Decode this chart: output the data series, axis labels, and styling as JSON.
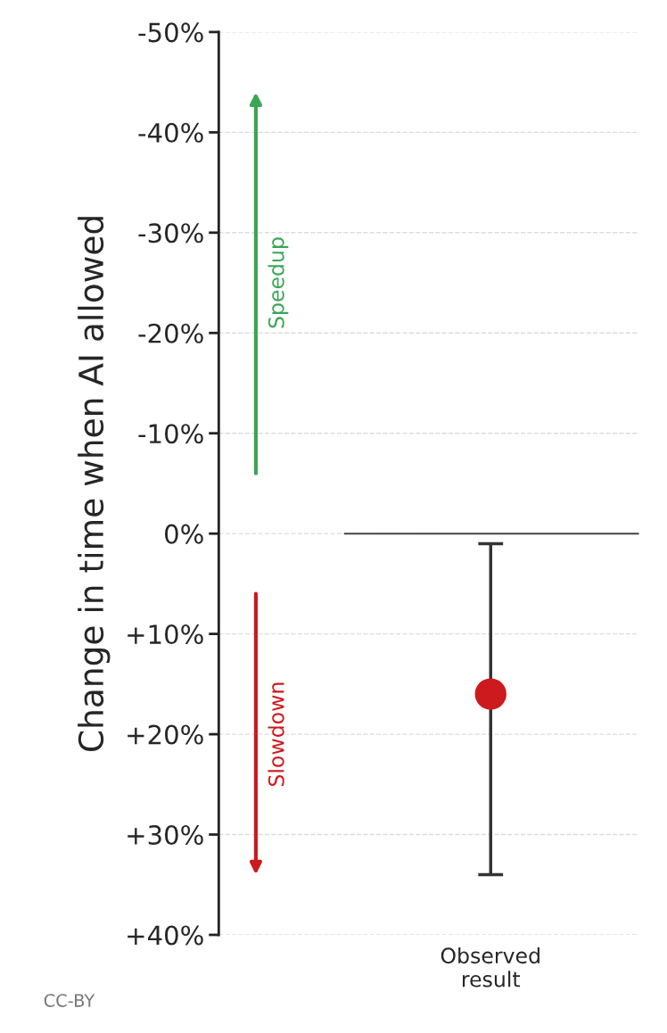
{
  "chart_data": {
    "type": "scatter",
    "ylabel": "Change in time when AI allowed",
    "categories": [
      "Observed\nresult"
    ],
    "series": [
      {
        "color": "#cc1a1f",
        "values": [
          16
        ],
        "errors": [
          [
            1,
            34
          ]
        ]
      }
    ],
    "ylim": [
      40,
      -50
    ],
    "yticks": [
      {
        "value": -50,
        "label": "-50%"
      },
      {
        "value": -40,
        "label": "-40%"
      },
      {
        "value": -30,
        "label": "-30%"
      },
      {
        "value": -20,
        "label": "-20%"
      },
      {
        "value": -10,
        "label": "-10%"
      },
      {
        "value": 0,
        "label": "0%"
      },
      {
        "value": 10,
        "label": "+10%"
      },
      {
        "value": 20,
        "label": "+20%"
      },
      {
        "value": 30,
        "label": "+30%"
      },
      {
        "value": 40,
        "label": "+40%"
      }
    ],
    "ref_lines": [
      {
        "axis": "y",
        "value": 0,
        "color": "#444444"
      }
    ],
    "grid": "y",
    "marker": "circle",
    "annotations": [
      "Speedup",
      "Slowdown",
      "CC-BY"
    ]
  }
}
